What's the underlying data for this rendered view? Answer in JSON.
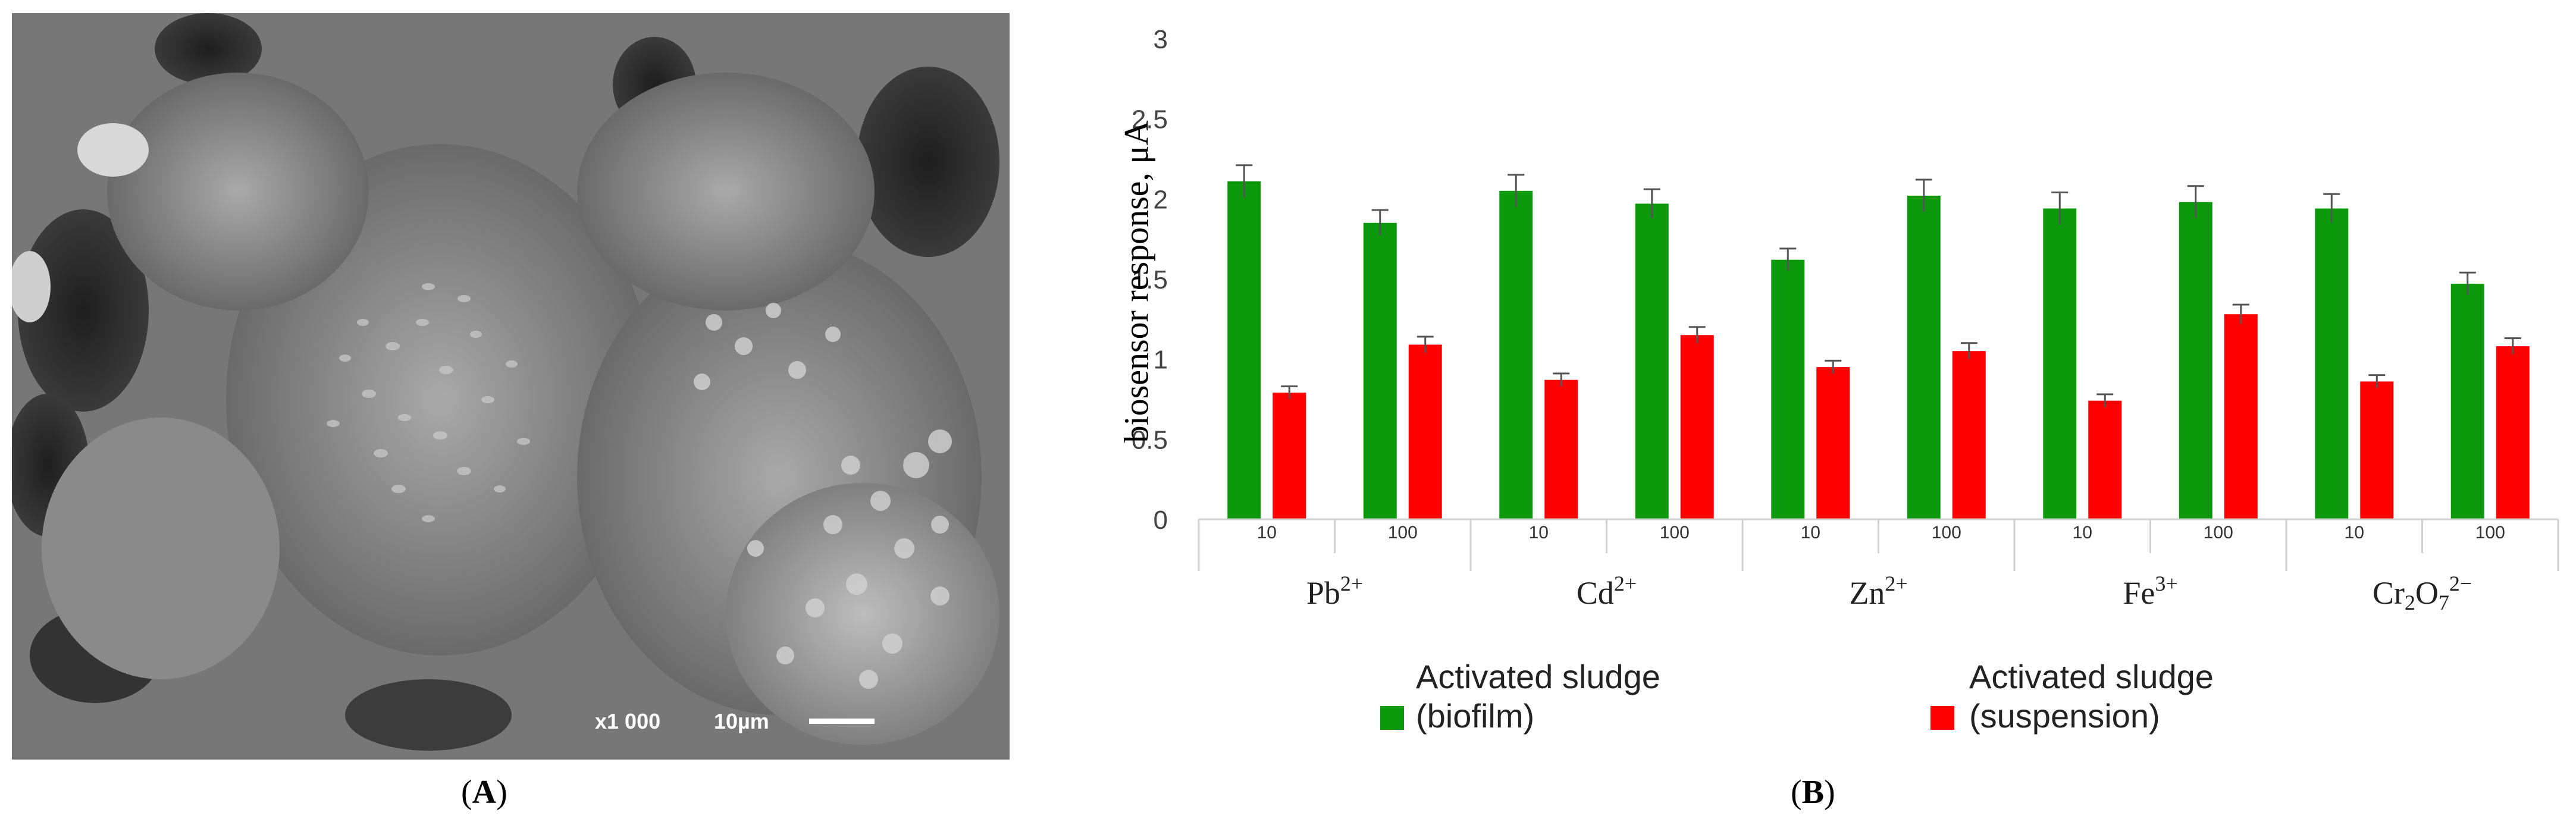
{
  "panel_a": {
    "label_open": "(",
    "label_letter": "A",
    "label_close": ")",
    "magnification": "x1 000",
    "scale_label": "10µm",
    "image_icon": "sem-micrograph-image"
  },
  "panel_b": {
    "label_open": "(",
    "label_letter": "B",
    "label_close": ")"
  },
  "chart_data": {
    "type": "bar",
    "ylabel": "biosensor response, μA",
    "ylim": [
      0,
      3
    ],
    "yticks": [
      "0",
      "0.5",
      "1",
      "1.5",
      "2",
      "2.5",
      "3"
    ],
    "grid": false,
    "legend_position": "bottom",
    "groups": [
      {
        "name": "Pb",
        "sup": "2+",
        "sub": ""
      },
      {
        "name": "Cd",
        "sup": "2+",
        "sub": ""
      },
      {
        "name": "Zn",
        "sup": "2+",
        "sub": ""
      },
      {
        "name": "Fe",
        "sup": "3+",
        "sub": ""
      },
      {
        "name": "Cr2O7",
        "sup": "2−",
        "sub": "Cr₂O₇"
      }
    ],
    "categories": [
      "10",
      "100",
      "10",
      "100",
      "10",
      "100",
      "10",
      "100",
      "10",
      "100"
    ],
    "series": [
      {
        "name": "Activated sludge (biofilm)",
        "name_line1": "Activated sludge",
        "name_line2": "(biofilm)",
        "color": "#0c9a0c",
        "values": [
          2.11,
          1.85,
          2.05,
          1.97,
          1.62,
          2.02,
          1.94,
          1.98,
          1.94,
          1.47
        ],
        "errors": [
          0.1,
          0.08,
          0.1,
          0.09,
          0.07,
          0.1,
          0.1,
          0.1,
          0.09,
          0.07
        ]
      },
      {
        "name": "Activated sludge (suspension)",
        "name_line1": "Activated sludge",
        "name_line2": "(suspension)",
        "color": "#ff0000",
        "values": [
          0.79,
          1.09,
          0.87,
          1.15,
          0.95,
          1.05,
          0.74,
          1.28,
          0.86,
          1.08
        ],
        "errors": [
          0.04,
          0.05,
          0.04,
          0.05,
          0.04,
          0.05,
          0.04,
          0.06,
          0.04,
          0.05
        ]
      }
    ]
  }
}
